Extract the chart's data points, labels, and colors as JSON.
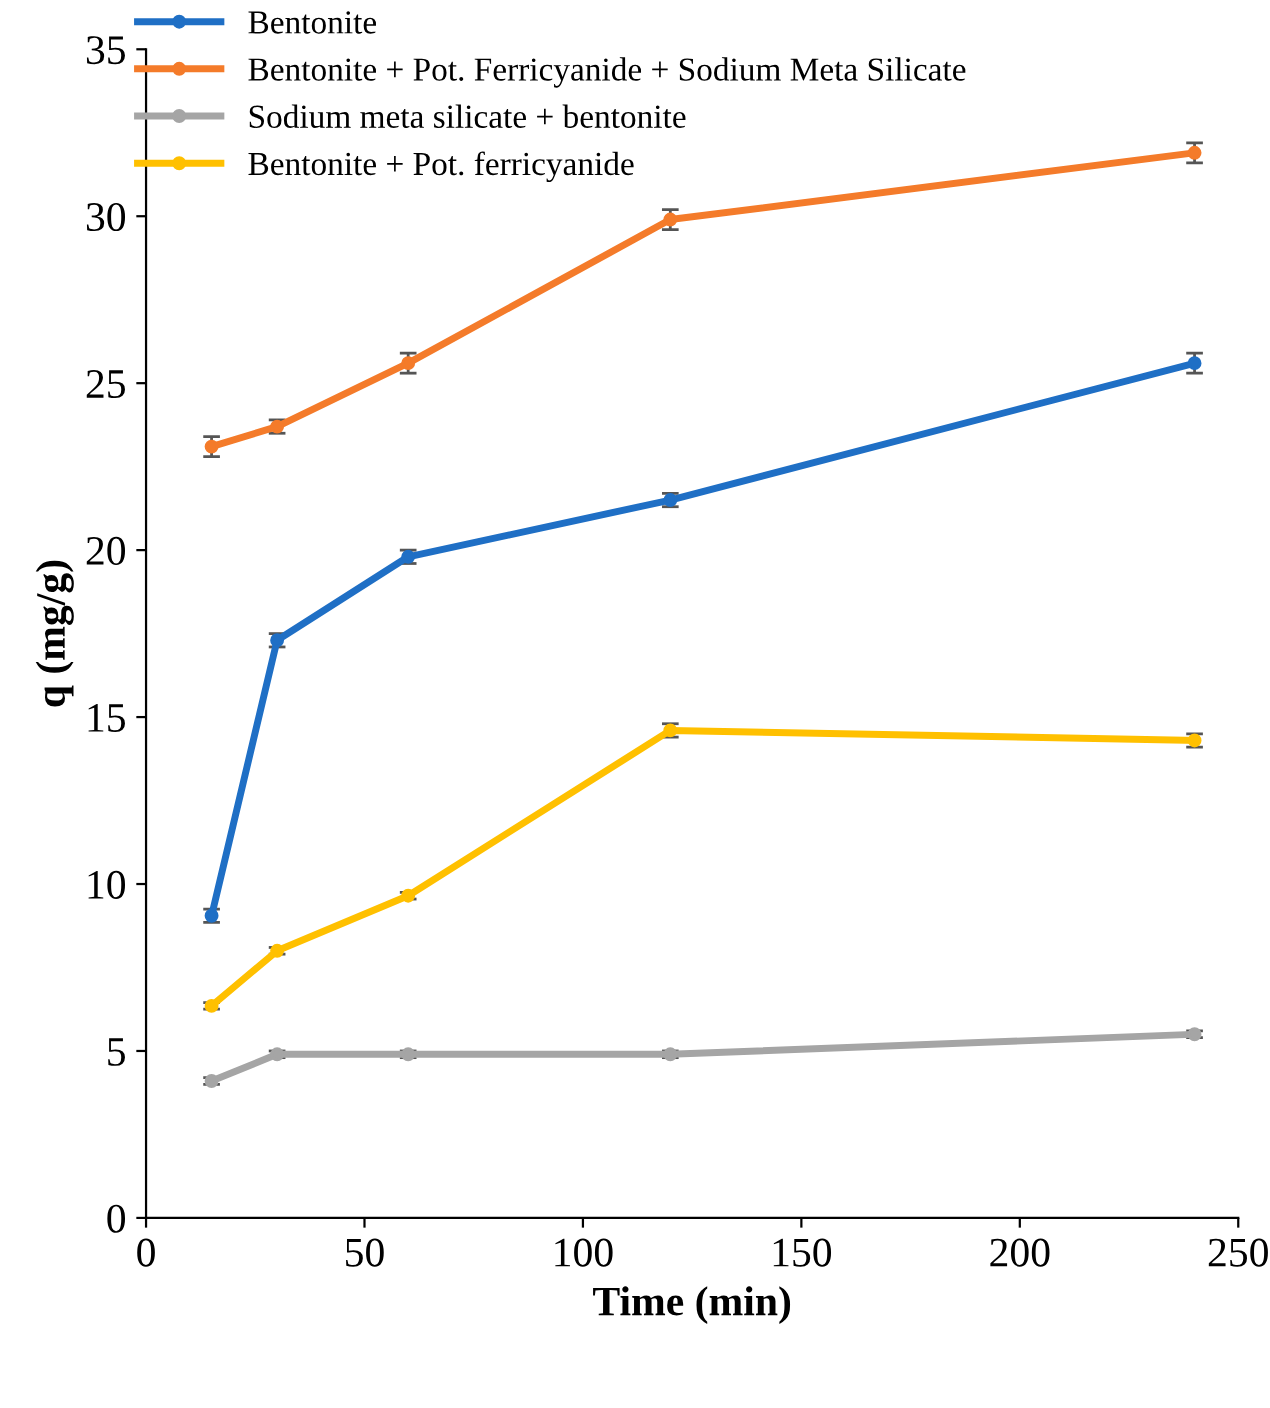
{
  "chart_data": {
    "type": "line",
    "xlabel": "Time (min)",
    "ylabel": "q (mg/g)",
    "x": [
      15,
      30,
      60,
      120,
      240
    ],
    "series": [
      {
        "name": "Bentonite",
        "color": "#1f6fc5",
        "values": [
          9.05,
          17.3,
          19.8,
          21.5,
          25.6
        ],
        "errors": [
          0.2,
          0.2,
          0.2,
          0.2,
          0.3
        ]
      },
      {
        "name": "Bentonite + Pot. Ferricyanide + Sodium Meta Silicate",
        "color": "#f47b2a",
        "values": [
          23.1,
          23.7,
          25.6,
          29.9,
          31.9
        ],
        "errors": [
          0.3,
          0.2,
          0.3,
          0.3,
          0.3
        ]
      },
      {
        "name": "Sodium meta silicate + bentonite",
        "color": "#a5a5a5",
        "values": [
          4.1,
          4.9,
          4.9,
          4.9,
          5.5
        ],
        "errors": [
          0.1,
          0.1,
          0.1,
          0.1,
          0.1
        ]
      },
      {
        "name": "Bentonite + Pot. ferricyanide",
        "color": "#ffc000",
        "values": [
          6.35,
          8.0,
          9.65,
          14.6,
          14.3
        ],
        "errors": [
          0.1,
          0.1,
          0.1,
          0.2,
          0.2
        ]
      }
    ],
    "xlim": [
      0,
      250
    ],
    "xticks": [
      0,
      50,
      100,
      150,
      200,
      250
    ],
    "ylim": [
      0,
      35
    ],
    "yticks": [
      0,
      5,
      10,
      15,
      20,
      25,
      30,
      35
    ],
    "grid": false,
    "legend": "top left",
    "marker": "circle",
    "line_style": "solid"
  }
}
